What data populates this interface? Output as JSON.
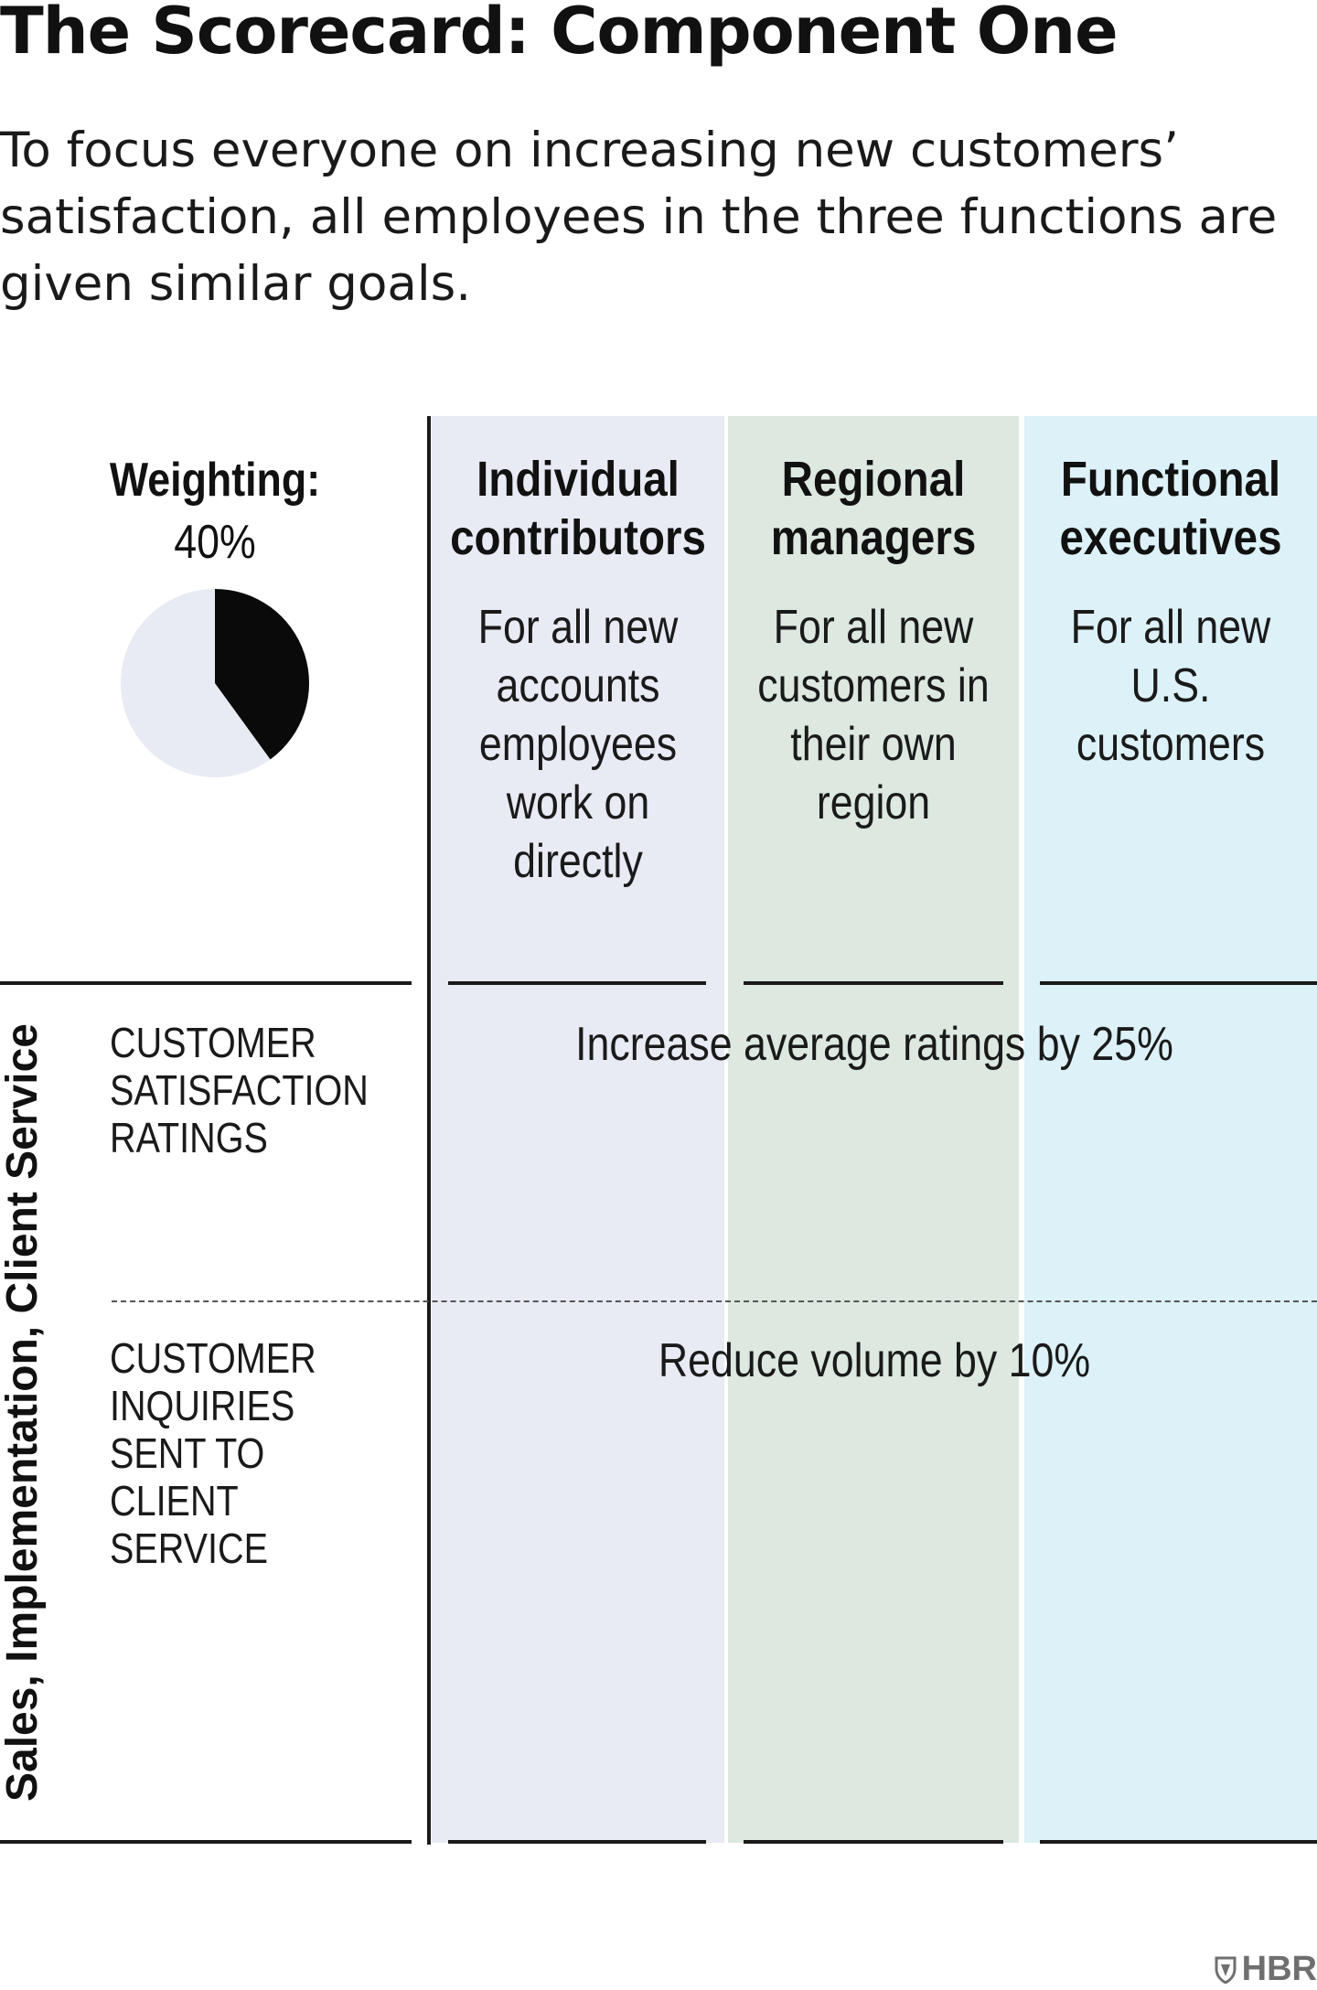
{
  "title": "The Scorecard: Component One",
  "subtitle": "To focus everyone on increasing new customers’ satisfaction, all employees in the three functions are given similar goals.",
  "weighting": {
    "label": "Weighting:",
    "value_text": "40%",
    "fraction": 0.4,
    "colors": {
      "filled": "#0a0a0a",
      "remainder": "#e8eaf4"
    }
  },
  "columns": [
    {
      "heading": "Individual contributors",
      "description": "For all new accounts employees work on directly",
      "color": "#e8eaf4"
    },
    {
      "heading": "Regional managers",
      "description": "For all new customers in their own region",
      "color": "#dce8e0"
    },
    {
      "heading": "Functional executives",
      "description": "For all new U.S. customers",
      "color": "#dcf1f8"
    }
  ],
  "group_label": "Sales, Implementation, Client Service",
  "rows": [
    {
      "metric": "CUSTOMER SATISFACTION RATINGS",
      "goal": "Increase average ratings by 25%"
    },
    {
      "metric": "CUSTOMER INQUIRIES SENT TO CLIENT SERVICE",
      "goal": "Reduce volume by 10%"
    }
  ],
  "brand": "HBR"
}
